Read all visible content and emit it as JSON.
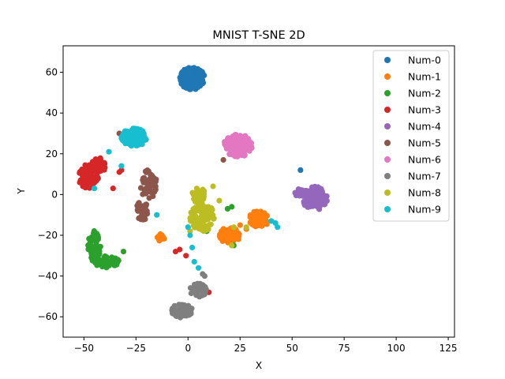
{
  "chart_data": {
    "type": "scatter",
    "title": "MNIST T-SNE 2D",
    "xlabel": "X",
    "ylabel": "Y",
    "xlim": [
      -60,
      128
    ],
    "ylim": [
      -70,
      73
    ],
    "xticks": [
      -50,
      -25,
      0,
      25,
      50,
      75,
      100,
      125
    ],
    "yticks": [
      -60,
      -40,
      -20,
      0,
      20,
      40,
      60
    ],
    "grid": false,
    "legend_position": "top-right",
    "series": [
      {
        "name": "Num-0",
        "color": "#1f77b4",
        "clusters": [
          {
            "cx": 2,
            "cy": 57,
            "rx": 6,
            "ry": 5.5,
            "n": 160
          }
        ],
        "points": [
          [
            54,
            12
          ]
        ]
      },
      {
        "name": "Num-1",
        "color": "#ff7f0e",
        "clusters": [
          {
            "cx": 20,
            "cy": -20,
            "rx": 5,
            "ry": 4,
            "n": 70
          },
          {
            "cx": 34,
            "cy": -12,
            "rx": 5,
            "ry": 4,
            "n": 50
          },
          {
            "cx": -13,
            "cy": -21,
            "rx": 2,
            "ry": 2,
            "n": 12
          }
        ],
        "points": [
          [
            28,
            -17
          ],
          [
            25,
            -15
          ]
        ]
      },
      {
        "name": "Num-2",
        "color": "#2ca02c",
        "clusters": [
          {
            "cx": -45,
            "cy": -25,
            "rx": 3,
            "ry": 8,
            "n": 50
          },
          {
            "cx": -39,
            "cy": -33,
            "rx": 6,
            "ry": 3,
            "n": 50
          }
        ],
        "points": [
          [
            19,
            -7
          ],
          [
            21,
            -6
          ],
          [
            -31,
            -28
          ],
          [
            22,
            -25
          ],
          [
            9,
            -18
          ]
        ]
      },
      {
        "name": "Num-3",
        "color": "#d62728",
        "clusters": [
          {
            "cx": -48,
            "cy": 9,
            "rx": 5,
            "ry": 6,
            "n": 70
          },
          {
            "cx": -43,
            "cy": 14,
            "rx": 3.5,
            "ry": 4,
            "n": 30
          }
        ],
        "points": [
          [
            -33,
            11
          ],
          [
            -36,
            3
          ],
          [
            -6,
            -28
          ],
          [
            -4,
            -27
          ],
          [
            -1,
            -30
          ],
          [
            10,
            -48
          ],
          [
            -32,
            12
          ]
        ]
      },
      {
        "name": "Num-4",
        "color": "#9467bd",
        "clusters": [
          {
            "cx": 61,
            "cy": -2,
            "rx": 6,
            "ry": 6,
            "n": 100
          },
          {
            "cx": 54,
            "cy": 1,
            "rx": 3,
            "ry": 2,
            "n": 20
          }
        ],
        "points": []
      },
      {
        "name": "Num-5",
        "color": "#8c564b",
        "clusters": [
          {
            "cx": -19,
            "cy": 5,
            "rx": 4,
            "ry": 7,
            "n": 60
          },
          {
            "cx": -22,
            "cy": -8,
            "rx": 3,
            "ry": 5,
            "n": 40
          }
        ],
        "points": [
          [
            -33,
            30
          ],
          [
            17,
            17
          ]
        ]
      },
      {
        "name": "Num-6",
        "color": "#e377c2",
        "clusters": [
          {
            "cx": 24,
            "cy": 24,
            "rx": 7,
            "ry": 5.5,
            "n": 150
          }
        ],
        "points": []
      },
      {
        "name": "Num-7",
        "color": "#7f7f7f",
        "clusters": [
          {
            "cx": -3,
            "cy": -57,
            "rx": 5,
            "ry": 3.5,
            "n": 60
          },
          {
            "cx": 5,
            "cy": -47,
            "rx": 4,
            "ry": 3.5,
            "n": 50
          }
        ],
        "points": [
          [
            8,
            -40
          ],
          [
            7,
            -39
          ]
        ]
      },
      {
        "name": "Num-8",
        "color": "#bcbd22",
        "clusters": [
          {
            "cx": 7,
            "cy": -11,
            "rx": 6,
            "ry": 7,
            "n": 100
          },
          {
            "cx": 5,
            "cy": 0,
            "rx": 3,
            "ry": 4,
            "n": 35
          }
        ],
        "points": [
          [
            22,
            -16
          ],
          [
            28,
            -16
          ],
          [
            21,
            -25
          ],
          [
            15,
            -3
          ],
          [
            1,
            -18
          ],
          [
            12,
            4
          ]
        ]
      },
      {
        "name": "Num-9",
        "color": "#17becf",
        "clusters": [
          {
            "cx": -26,
            "cy": 28,
            "rx": 6,
            "ry": 4.5,
            "n": 120
          }
        ],
        "points": [
          [
            -38,
            21
          ],
          [
            -32,
            14
          ],
          [
            -45,
            3
          ],
          [
            1,
            -20
          ],
          [
            2,
            -26
          ],
          [
            -15,
            -10
          ],
          [
            3,
            -33
          ],
          [
            5,
            -36
          ],
          [
            42,
            -14
          ],
          [
            43,
            -16
          ],
          [
            40,
            -13
          ],
          [
            0,
            -16
          ]
        ]
      }
    ]
  }
}
